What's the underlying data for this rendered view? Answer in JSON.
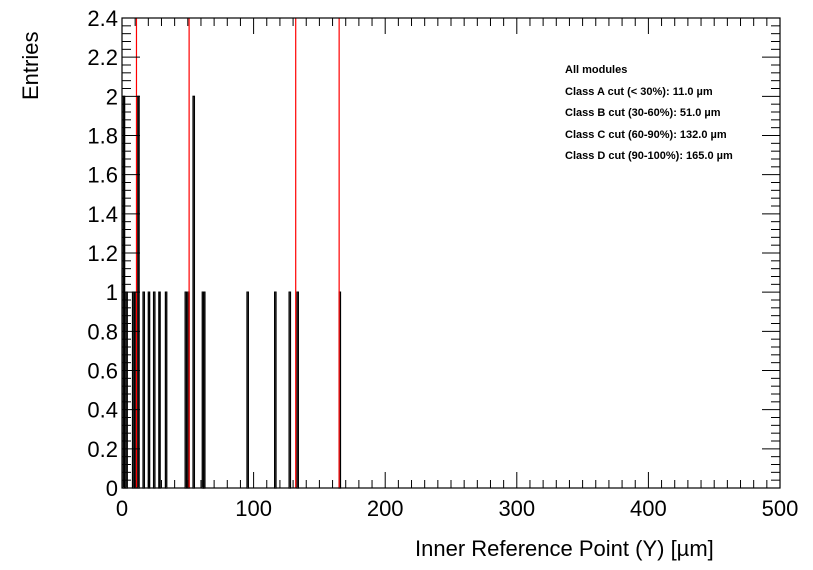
{
  "chart_data": {
    "type": "bar",
    "xlabel": "Inner Reference Point (Y) [µm]",
    "ylabel": "Entries",
    "xlim": [
      0,
      500
    ],
    "ylim": [
      0,
      2.4
    ],
    "x_ticks": [
      "0",
      "100",
      "200",
      "300",
      "400",
      "500"
    ],
    "y_ticks": [
      "0",
      "0.2",
      "0.4",
      "0.6",
      "0.8",
      "1",
      "1.2",
      "1.4",
      "1.6",
      "1.8",
      "2",
      "2.2",
      "2.4"
    ],
    "bins": [
      {
        "x": 1,
        "y": 2
      },
      {
        "x": 3,
        "y": 1
      },
      {
        "x": 8,
        "y": 1
      },
      {
        "x": 10,
        "y": 1
      },
      {
        "x": 12,
        "y": 2
      },
      {
        "x": 16,
        "y": 1
      },
      {
        "x": 20,
        "y": 1
      },
      {
        "x": 24,
        "y": 1
      },
      {
        "x": 28,
        "y": 1
      },
      {
        "x": 33,
        "y": 1
      },
      {
        "x": 48,
        "y": 1
      },
      {
        "x": 50,
        "y": 1
      },
      {
        "x": 54,
        "y": 2
      },
      {
        "x": 61,
        "y": 1
      },
      {
        "x": 62,
        "y": 1
      },
      {
        "x": 95,
        "y": 1
      },
      {
        "x": 116,
        "y": 1
      },
      {
        "x": 127,
        "y": 1
      },
      {
        "x": 133,
        "y": 1
      },
      {
        "x": 165,
        "y": 1
      }
    ],
    "cut_lines": [
      11.0,
      51.0,
      132.0,
      165.0
    ],
    "cut_line_color": "#ff0000",
    "bar_color": "#000000",
    "legend": {
      "title": "All modules",
      "entries": [
        "Class A cut (< 30%): 11.0 µm",
        "Class B cut (30-60%): 51.0 µm",
        "Class C cut (60-90%): 132.0 µm",
        "Class D cut (90-100%): 165.0 µm"
      ],
      "placement": "top-right"
    }
  }
}
